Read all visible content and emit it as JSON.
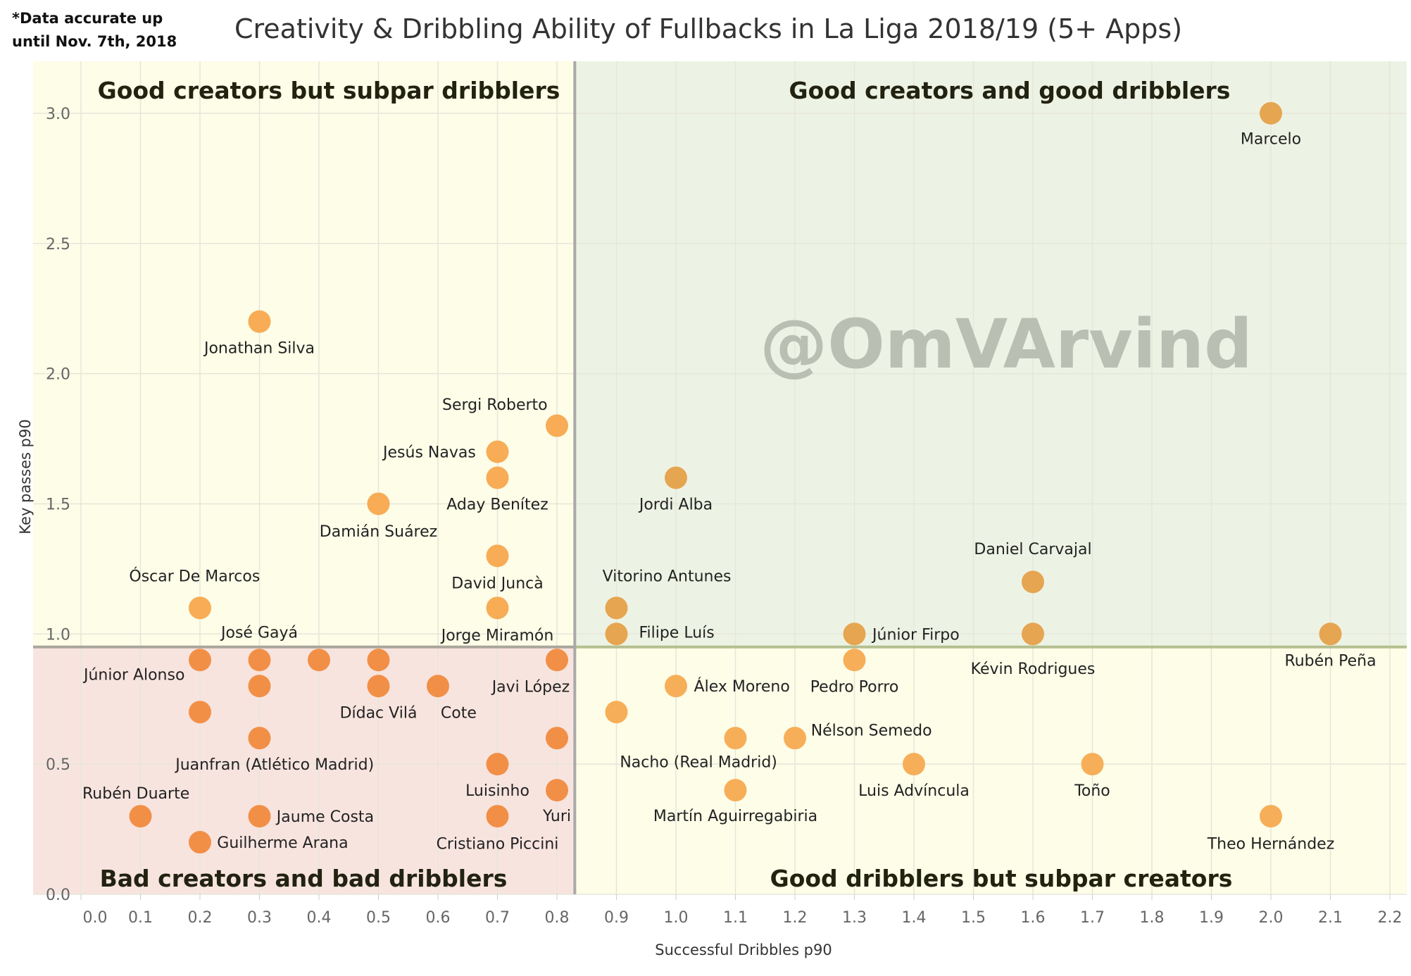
{
  "note": [
    "*Data accurate up",
    "until Nov. 7th, 2018"
  ],
  "watermark": "@OmVArvind",
  "chart_data": {
    "type": "scatter",
    "title": "Creativity & Dribbling Ability of Fullbacks in La Liga 2018/19 (5+ Apps)",
    "xlabel": "Successful Dribbles p90",
    "ylabel": "Key passes p90",
    "xlim": [
      0.0,
      2.2
    ],
    "ylim": [
      0.0,
      3.0
    ],
    "xticks": [
      "0.0",
      "0.1",
      "0.2",
      "0.3",
      "0.4",
      "0.5",
      "0.6",
      "0.7",
      "0.8",
      "0.9",
      "1.0",
      "1.1",
      "1.2",
      "1.3",
      "1.4",
      "1.5",
      "1.6",
      "1.7",
      "1.8",
      "1.9",
      "2.0",
      "2.1",
      "2.2"
    ],
    "yticks": [
      "0.0",
      "0.5",
      "1.0",
      "1.5",
      "2.0",
      "2.5",
      "3.0"
    ],
    "grid": true,
    "reference_lines": {
      "x": 0.83,
      "y": 0.95
    },
    "quadrants": {
      "top_left": {
        "label": "Good creators but subpar dribblers",
        "color": "#fdfde8"
      },
      "top_right": {
        "label": "Good creators and good dribblers",
        "color": "#edf3e4"
      },
      "bottom_left": {
        "label": "Bad creators and bad dribblers",
        "color": "#f8e4df"
      },
      "bottom_right": {
        "label": "Good dribblers but subpar creators",
        "color": "#fdfde8"
      }
    },
    "point_colors": {
      "top_left": "#f7ac55",
      "top_right": "#e6a550",
      "bottom_left": "#f28f47",
      "bottom_right": "#f7ae58"
    },
    "points": [
      {
        "name": "Marcelo",
        "x": 2.0,
        "y": 3.0
      },
      {
        "name": "Jonathan Silva",
        "x": 0.3,
        "y": 2.2
      },
      {
        "name": "Sergi Roberto",
        "x": 0.8,
        "y": 1.8
      },
      {
        "name": "Jesús Navas",
        "x": 0.7,
        "y": 1.7
      },
      {
        "name": "Aday Benítez",
        "x": 0.7,
        "y": 1.6
      },
      {
        "name": "Damián Suárez",
        "x": 0.5,
        "y": 1.5
      },
      {
        "name": "David Juncà",
        "x": 0.7,
        "y": 1.3
      },
      {
        "name": "Jorge Miramón",
        "x": 0.7,
        "y": 1.1
      },
      {
        "name": "Óscar De Marcos",
        "x": 0.2,
        "y": 1.1
      },
      {
        "name": "José Gayá",
        "x": 0.3,
        "y": 0.9
      },
      {
        "name": "Júnior Alonso",
        "x": 0.2,
        "y": 0.9
      },
      {
        "name": "",
        "x": 0.4,
        "y": 0.9
      },
      {
        "name": "",
        "x": 0.5,
        "y": 0.9
      },
      {
        "name": "Javi López",
        "x": 0.8,
        "y": 0.9
      },
      {
        "name": "",
        "x": 0.3,
        "y": 0.8
      },
      {
        "name": "Dídac Vilá",
        "x": 0.5,
        "y": 0.8
      },
      {
        "name": "Cote",
        "x": 0.6,
        "y": 0.8
      },
      {
        "name": "",
        "x": 0.2,
        "y": 0.7
      },
      {
        "name": "Juanfran (Atlético Madrid)",
        "x": 0.3,
        "y": 0.6
      },
      {
        "name": "",
        "x": 0.8,
        "y": 0.6
      },
      {
        "name": "Luisinho",
        "x": 0.7,
        "y": 0.5
      },
      {
        "name": "Yuri",
        "x": 0.8,
        "y": 0.4
      },
      {
        "name": "Rubén Duarte",
        "x": 0.1,
        "y": 0.3
      },
      {
        "name": "Jaume Costa",
        "x": 0.3,
        "y": 0.3
      },
      {
        "name": "Cristiano Piccini",
        "x": 0.7,
        "y": 0.3
      },
      {
        "name": "Guilherme Arana",
        "x": 0.2,
        "y": 0.2
      },
      {
        "name": "Vitorino Antunes",
        "x": 0.9,
        "y": 1.1
      },
      {
        "name": "Filipe Luís",
        "x": 0.9,
        "y": 1.0
      },
      {
        "name": "",
        "x": 0.9,
        "y": 0.7
      },
      {
        "name": "Jordi Alba",
        "x": 1.0,
        "y": 1.6
      },
      {
        "name": "Álex Moreno",
        "x": 1.0,
        "y": 0.8
      },
      {
        "name": "Nacho (Real Madrid)",
        "x": 1.1,
        "y": 0.6
      },
      {
        "name": "Martín Aguirregabiria",
        "x": 1.1,
        "y": 0.4
      },
      {
        "name": "Nélson Semedo",
        "x": 1.2,
        "y": 0.6
      },
      {
        "name": "Pedro Porro",
        "x": 1.3,
        "y": 0.9
      },
      {
        "name": "Júnior Firpo",
        "x": 1.3,
        "y": 1.0
      },
      {
        "name": "Daniel Carvajal",
        "x": 1.6,
        "y": 1.2
      },
      {
        "name": "Kévin Rodrigues",
        "x": 1.6,
        "y": 1.0
      },
      {
        "name": "Luis Advíncula",
        "x": 1.4,
        "y": 0.5
      },
      {
        "name": "Toño",
        "x": 1.7,
        "y": 0.5
      },
      {
        "name": "Theo Hernández",
        "x": 2.0,
        "y": 0.3
      },
      {
        "name": "Rubén Peña",
        "x": 2.1,
        "y": 1.0
      }
    ]
  }
}
